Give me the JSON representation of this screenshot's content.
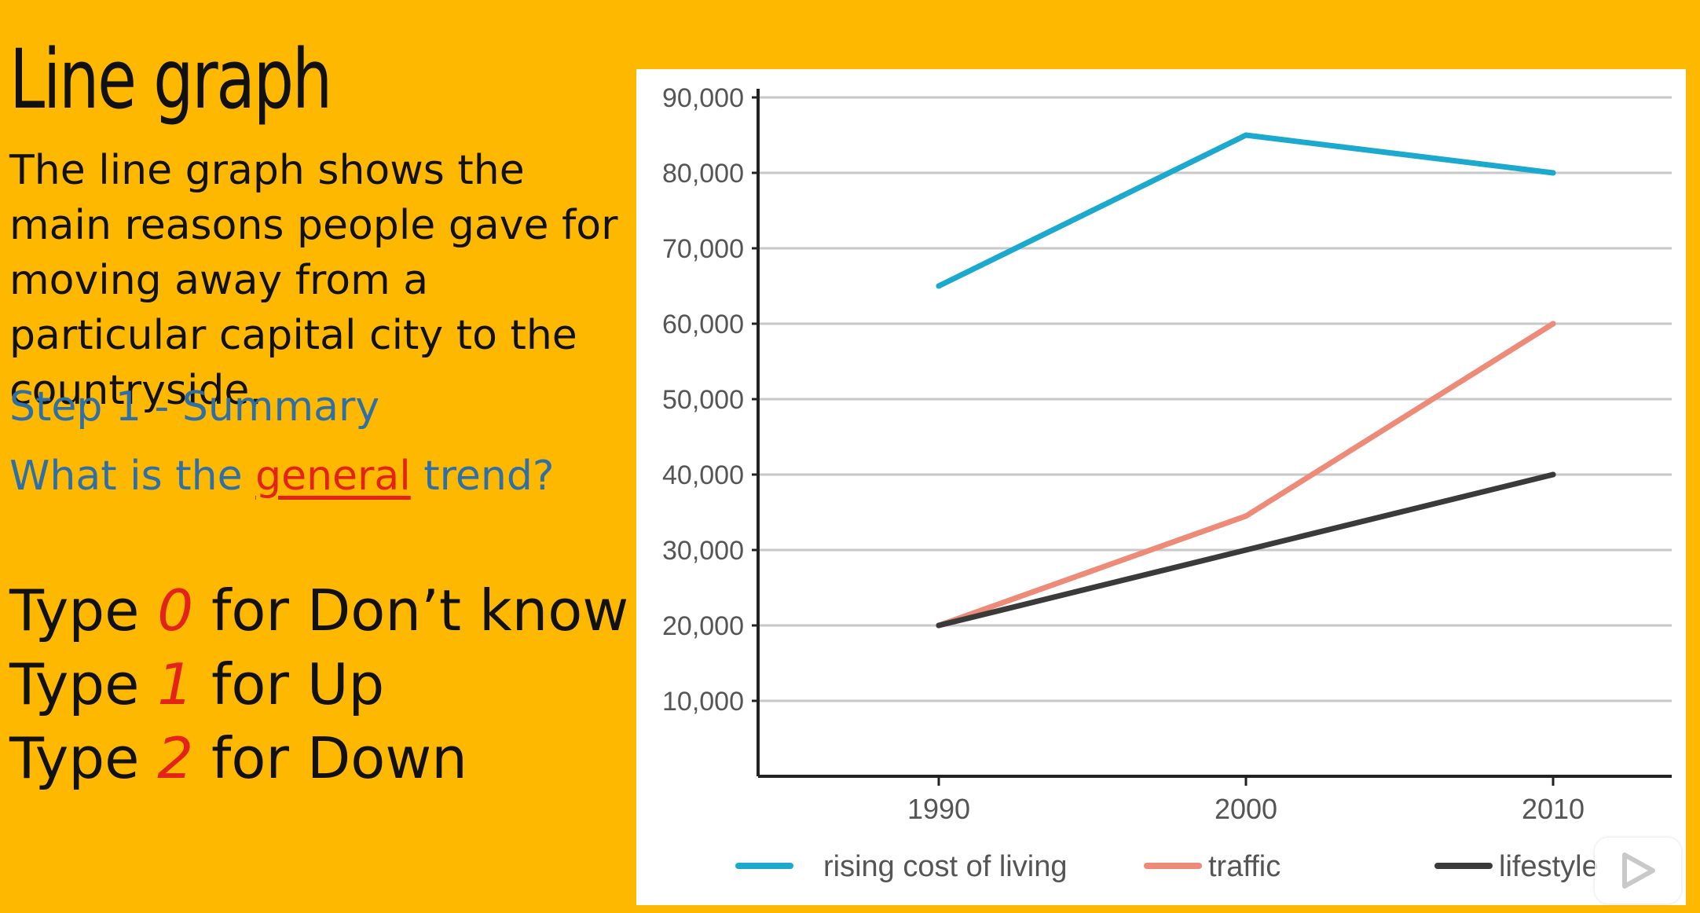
{
  "slide": {
    "title": "Line graph",
    "description": "The line graph shows the main reasons people gave for moving away from a particular capital city to the countryside.",
    "step_title": "Step 1 - Summary",
    "question_prefix": "What is the ",
    "question_highlight": "general",
    "question_suffix": " trend?",
    "types": [
      {
        "prefix": "Type ",
        "number": "0",
        "suffix": " for Don’t know"
      },
      {
        "prefix": "Type ",
        "number": "1",
        "suffix": " for Up"
      },
      {
        "prefix": "Type ",
        "number": "2",
        "suffix": " for Down"
      }
    ]
  },
  "colors": {
    "background": "#FEB800",
    "question_text": "#2E6FA7",
    "highlight": "#E42318"
  },
  "chart_data": {
    "type": "line",
    "x": [
      "1990",
      "2000",
      "2010"
    ],
    "series": [
      {
        "name": "rising cost of living",
        "values": [
          65000,
          85000,
          80000
        ],
        "color": "#1BA9CE"
      },
      {
        "name": "traffic",
        "values": [
          20000,
          34500,
          60000
        ],
        "color": "#EE8A78"
      },
      {
        "name": "lifestyle",
        "values": [
          20000,
          30000,
          40000
        ],
        "color": "#3A3A3A"
      }
    ],
    "y_ticks": [
      "10,000",
      "20,000",
      "30,000",
      "40,000",
      "50,000",
      "60,000",
      "70,000",
      "80,000",
      "90,000"
    ],
    "ylim": [
      0,
      90000
    ],
    "grid": true,
    "legend_position": "bottom"
  },
  "overlay": {
    "play_icon": "play-icon"
  }
}
